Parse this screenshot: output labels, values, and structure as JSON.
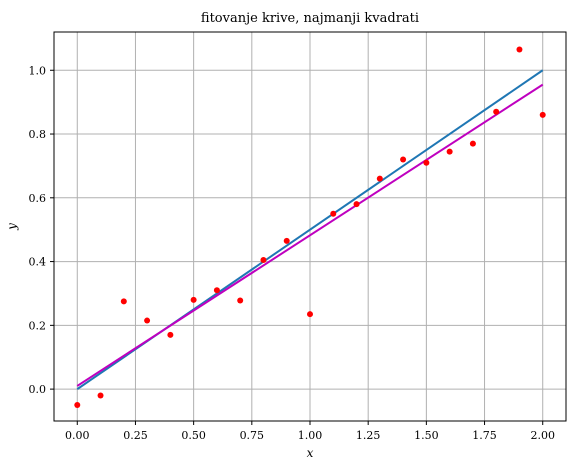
{
  "chart_data": {
    "type": "scatter",
    "title": "fitovanje krive, najmanji kvadrati",
    "xlabel": "x",
    "ylabel": "y",
    "xlim": [
      -0.1,
      2.1
    ],
    "ylim": [
      -0.1,
      1.12
    ],
    "grid": true,
    "x_ticks": [
      "0.00",
      "0.25",
      "0.50",
      "0.75",
      "1.00",
      "1.25",
      "1.50",
      "1.75",
      "2.00"
    ],
    "y_ticks": [
      "0.0",
      "0.2",
      "0.4",
      "0.6",
      "0.8",
      "1.0"
    ],
    "points": {
      "color": "#ff0000",
      "x": [
        0.0,
        0.1,
        0.2,
        0.3,
        0.4,
        0.5,
        0.6,
        0.7,
        0.8,
        0.9,
        1.0,
        1.1,
        1.2,
        1.3,
        1.4,
        1.5,
        1.6,
        1.7,
        1.8,
        1.9,
        2.0
      ],
      "y": [
        -0.05,
        -0.02,
        0.275,
        0.215,
        0.17,
        0.28,
        0.31,
        0.278,
        0.405,
        0.465,
        0.235,
        0.55,
        0.58,
        0.66,
        0.72,
        0.71,
        0.745,
        0.77,
        0.87,
        1.065,
        0.86
      ]
    },
    "lines": [
      {
        "color": "#1f77b4",
        "x": [
          0.0,
          2.0
        ],
        "y": [
          0.0,
          1.0
        ]
      },
      {
        "color": "#bf00bf",
        "x": [
          0.0,
          2.0
        ],
        "y": [
          0.01,
          0.955
        ]
      }
    ]
  }
}
